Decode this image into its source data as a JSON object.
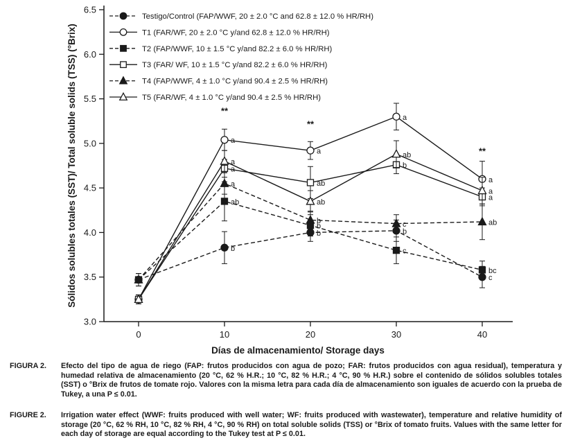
{
  "chart_data": {
    "type": "line",
    "title": "",
    "xlabel": "Días de almacenamiento/ Storage days",
    "ylabel": "Sólidos solubles totales (SST)/ Total soluble solids (TSS) (°Brix)",
    "x": [
      0,
      10,
      20,
      30,
      40
    ],
    "ylim": [
      3.0,
      6.5
    ],
    "yticks": [
      3.0,
      3.5,
      4.0,
      4.5,
      5.0,
      5.5,
      6.0,
      6.5
    ],
    "grid": false,
    "legend_position": "top-left-inside",
    "series": [
      {
        "name": "Testigo/Control (FAP/WWF, 20 ± 2.0 °C and 62.8 ± 12.0 % HR/RH)",
        "marker": "circle",
        "fill": "filled",
        "line_style": "dashed",
        "values": [
          3.47,
          3.83,
          4.0,
          4.02,
          3.5
        ],
        "errors": [
          0.07,
          0.18,
          0.1,
          0.12,
          0.12
        ],
        "point_labels": [
          "",
          "b",
          "b",
          "b",
          "c"
        ]
      },
      {
        "name": "T1 (FAR/WF, 20 ± 2.0 °C y/and 62.8 ± 12.0 % HR/RH)",
        "marker": "circle",
        "fill": "open",
        "line_style": "solid",
        "values": [
          3.25,
          5.04,
          4.92,
          5.3,
          4.6
        ],
        "errors": [
          0.05,
          0.12,
          0.1,
          0.15,
          0.2
        ],
        "point_labels": [
          "",
          "a",
          "a",
          "a",
          "a"
        ]
      },
      {
        "name": "T2 (FAP/WWF, 10 ± 1.5 °C y/and 82.2 ± 6.0 % HR/RH)",
        "marker": "square",
        "fill": "filled",
        "line_style": "dashed",
        "values": [
          3.47,
          4.35,
          4.08,
          3.8,
          3.58
        ],
        "errors": [
          0.07,
          0.22,
          0.12,
          0.15,
          0.1
        ],
        "point_labels": [
          "",
          "ab",
          "b",
          "c",
          "bc"
        ]
      },
      {
        "name": "T3 (FAR/ WF, 10 ± 1.5 °C y/and 82.2 ± 6.0 % HR/RH)",
        "marker": "square",
        "fill": "open",
        "line_style": "solid",
        "values": [
          3.25,
          4.72,
          4.56,
          4.76,
          4.4
        ],
        "errors": [
          0.05,
          0.1,
          0.18,
          0.1,
          0.1
        ],
        "point_labels": [
          "",
          "a",
          "ab",
          "b",
          "a"
        ]
      },
      {
        "name": "T4 (FAP/WWF, 4 ± 1.0 °C y/and 90.4 ± 2.5 % HR/RH)",
        "marker": "triangle",
        "fill": "filled",
        "line_style": "dashed",
        "values": [
          3.47,
          4.55,
          4.14,
          4.1,
          4.12
        ],
        "errors": [
          0.07,
          0.12,
          0.1,
          0.1,
          0.2
        ],
        "point_labels": [
          "",
          "a",
          "b",
          "c",
          "ab"
        ]
      },
      {
        "name": "T5 (FAR/WF, 4 ± 1.0 °C y/and 90.4 ± 2.5 % HR/RH)",
        "marker": "triangle",
        "fill": "open",
        "line_style": "solid",
        "values": [
          3.25,
          4.8,
          4.35,
          4.88,
          4.47
        ],
        "errors": [
          0.05,
          0.12,
          0.12,
          0.15,
          0.15
        ],
        "point_labels": [
          "",
          "a",
          "ab",
          "ab",
          "a"
        ]
      }
    ],
    "significance_markers": [
      {
        "x": 10,
        "y": 5.33,
        "text": "**"
      },
      {
        "x": 20,
        "y": 5.18,
        "text": "**"
      },
      {
        "x": 40,
        "y": 4.88,
        "text": "**"
      }
    ]
  },
  "captions": {
    "es": {
      "label": "FIGURA 2.",
      "text": "Efecto del tipo de agua de riego (FAP: frutos producidos con agua de pozo; FAR: frutos producidos con agua residual), temperatura y humedad relativa de almacenamiento (20 °C, 62 % H.R.; 10 °C, 82 % H.R.; 4 °C, 90 % H.R.) sobre el contenido de sólidos solubles totales (SST) o °Brix de frutos de tomate rojo. Valores con la misma letra para cada día de almacenamiento son iguales de acuerdo con la prueba de Tukey, a una P ≤ 0.01."
    },
    "en": {
      "label": "FIGURE 2.",
      "text": "Irrigation water effect (WWF: fruits produced with well water; WF: fruits produced with wastewater), temperature and relative humidity of storage (20 °C, 62 % RH, 10 °C, 82 % RH, 4 °C, 90 % RH) on total soluble solids (TSS) or °Brix of tomato fruits. Values with the same letter for each day of storage are equal according to the Tukey test at P ≤ 0.01."
    }
  },
  "colors": {
    "ink": "#1a1a1a",
    "background": "#ffffff"
  }
}
